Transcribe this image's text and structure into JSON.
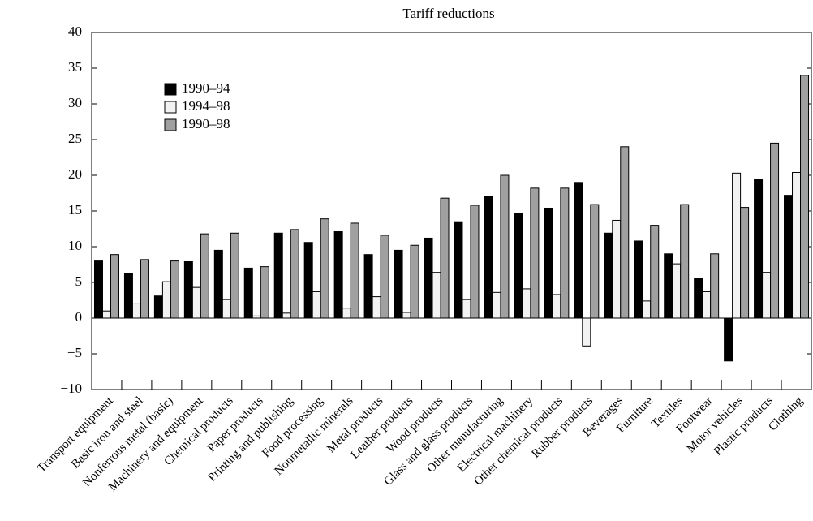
{
  "chart_data": {
    "type": "bar",
    "title": "Tariff reductions",
    "categories": [
      "Transport equipment",
      "Basic iron and steel",
      "Nonferrous metal (basic)",
      "Machinery and equipment",
      "Chemical products",
      "Paper products",
      "Printing and publishing",
      "Food processing",
      "Nonmetallic minerals",
      "Metal products",
      "Leather products",
      "Wood products",
      "Glass and glass products",
      "Other manufacturing",
      "Electrical machinery",
      "Other chemical products",
      "Rubber products",
      "Beverages",
      "Furniture",
      "Textiles",
      "Footwear",
      "Motor vehicles",
      "Plastic products",
      "Clothing"
    ],
    "series": [
      {
        "name": "1990–94",
        "color": "#000000",
        "values": [
          8.0,
          6.3,
          3.1,
          7.9,
          9.5,
          7.0,
          11.9,
          10.6,
          12.1,
          8.9,
          9.5,
          11.2,
          13.5,
          17.0,
          14.7,
          15.4,
          19.0,
          11.9,
          10.8,
          9.0,
          5.6,
          -6.0,
          19.4,
          17.2
        ]
      },
      {
        "name": "1994–98",
        "color": "#f2f2f2",
        "values": [
          1.0,
          2.0,
          5.1,
          4.3,
          2.6,
          0.3,
          0.7,
          3.7,
          1.4,
          3.0,
          0.8,
          6.4,
          2.6,
          3.6,
          4.1,
          3.3,
          -3.9,
          13.7,
          2.4,
          7.6,
          3.7,
          20.3,
          6.4,
          20.4
        ]
      },
      {
        "name": "1990–98",
        "color": "#a0a0a0",
        "values": [
          8.9,
          8.2,
          8.0,
          11.8,
          11.9,
          7.2,
          12.4,
          13.9,
          13.3,
          11.6,
          10.2,
          16.8,
          15.8,
          20.0,
          18.2,
          18.2,
          15.9,
          24.0,
          13.0,
          15.9,
          9.0,
          15.5,
          24.5,
          34.0
        ]
      }
    ],
    "ylim": [
      -10,
      40
    ],
    "yticks": [
      {
        "value": -10,
        "label": "−10"
      },
      {
        "value": -5,
        "label": "−5"
      },
      0,
      5,
      10,
      15,
      20,
      25,
      30,
      35,
      40
    ]
  }
}
